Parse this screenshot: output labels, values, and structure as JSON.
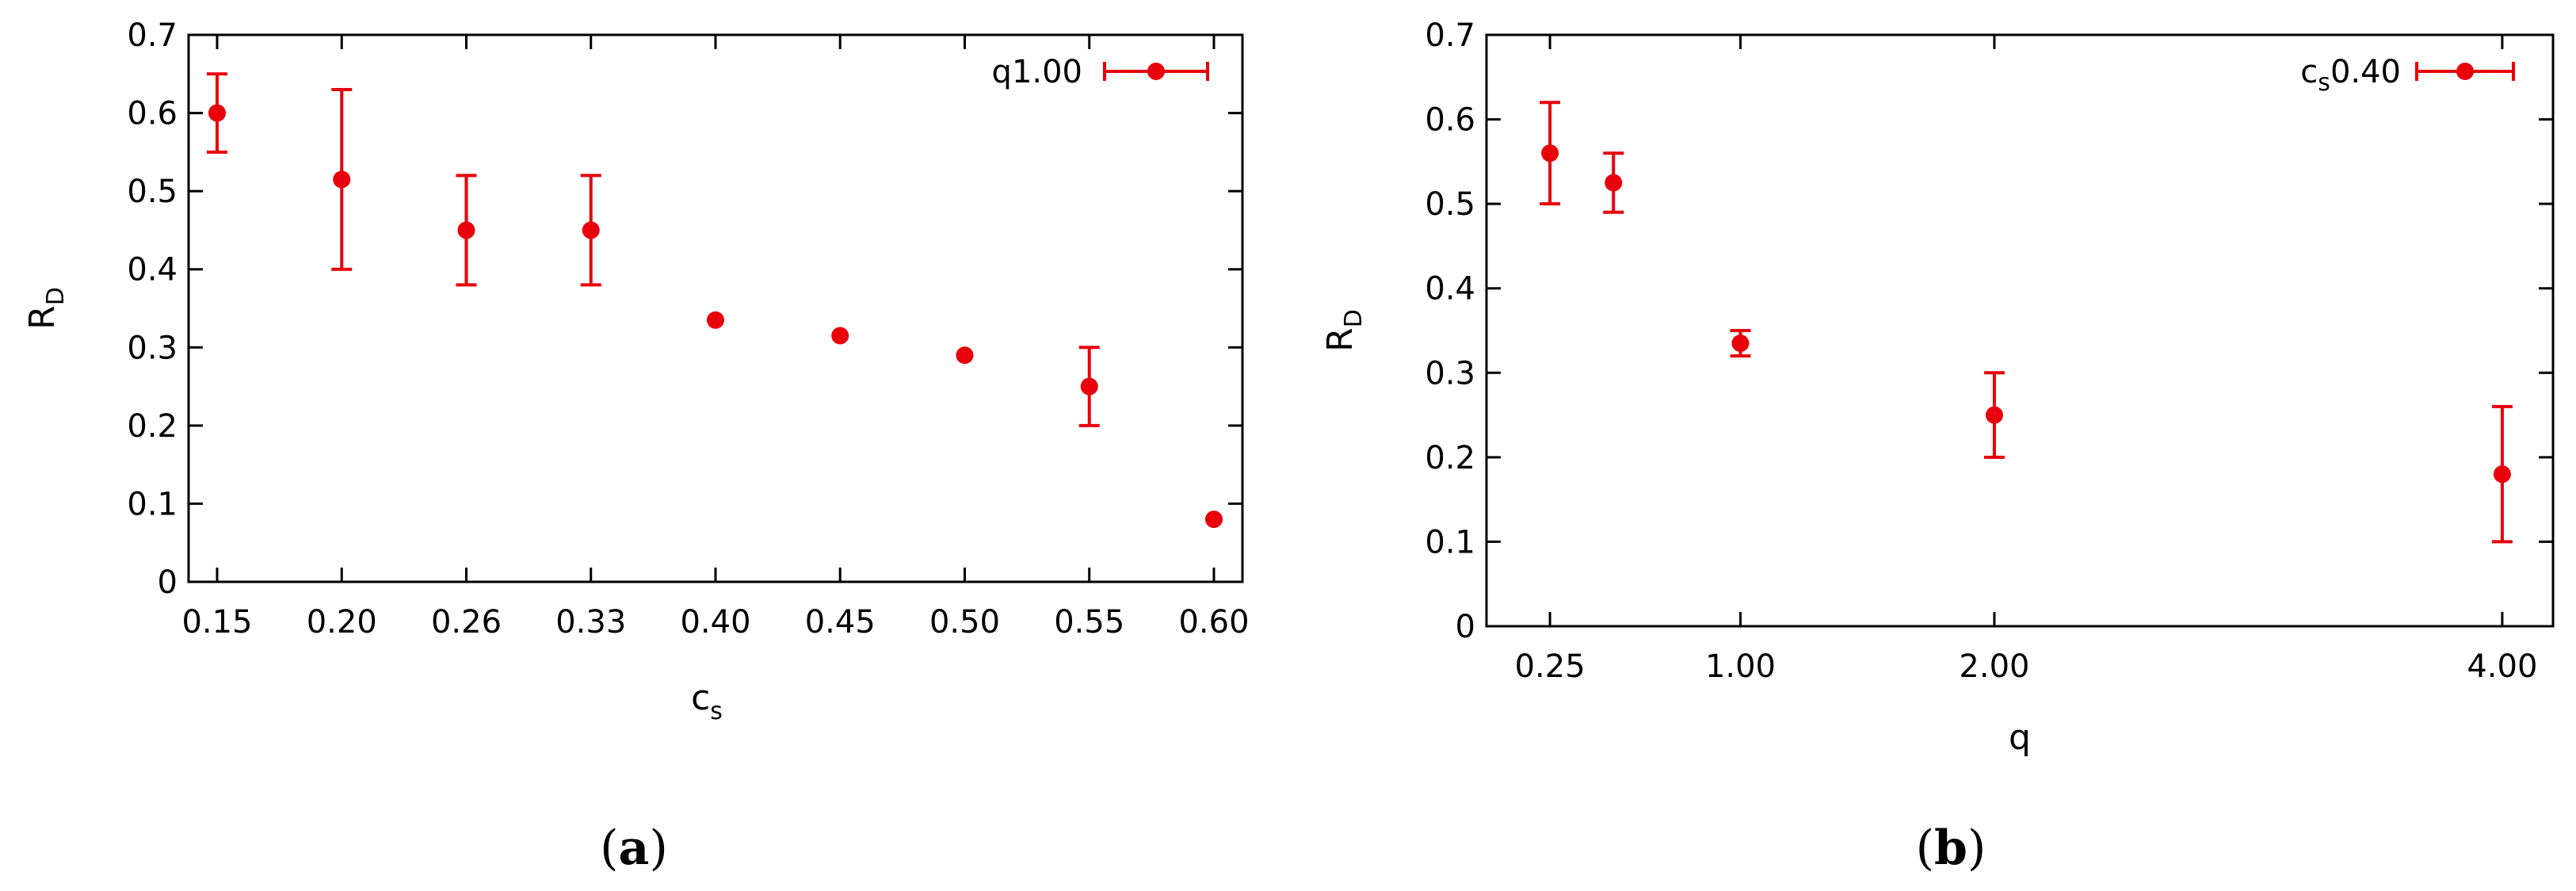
{
  "chart_data": [
    {
      "type": "scatter",
      "caption": "a",
      "xlabel": "c",
      "xlabel_sub": "s",
      "ylabel": "R",
      "ylabel_sub": "D",
      "ylim": [
        0,
        0.7
      ],
      "y_ticks": [
        "0",
        "0.1",
        "0.2",
        "0.3",
        "0.4",
        "0.5",
        "0.6",
        "0.7"
      ],
      "x_ticks": [
        "0.15",
        "0.20",
        "0.26",
        "0.33",
        "0.40",
        "0.45",
        "0.50",
        "0.55",
        "0.60"
      ],
      "legend": "top-right",
      "color": "#e8000b",
      "series": [
        {
          "name": "q1.00",
          "x": [
            0.15,
            0.2,
            0.26,
            0.33,
            0.4,
            0.45,
            0.5,
            0.55,
            0.6
          ],
          "y": [
            0.6,
            0.515,
            0.45,
            0.45,
            0.335,
            0.315,
            0.29,
            0.25,
            0.08
          ],
          "err_low": [
            0.55,
            0.4,
            0.38,
            0.38,
            null,
            null,
            null,
            0.2,
            null
          ],
          "err_high": [
            0.65,
            0.63,
            0.52,
            0.52,
            null,
            null,
            null,
            0.3,
            null
          ]
        }
      ]
    },
    {
      "type": "scatter",
      "caption": "b",
      "xlabel": "q",
      "xlabel_sub": "",
      "ylabel": "R",
      "ylabel_sub": "D",
      "ylim": [
        0,
        0.7
      ],
      "xlim": [
        0.0,
        4.2
      ],
      "y_ticks": [
        "0",
        "0.1",
        "0.2",
        "0.3",
        "0.4",
        "0.5",
        "0.6",
        "0.7"
      ],
      "x_ticks": [
        "0.25",
        "1.00",
        "2.00",
        "4.00"
      ],
      "x_tick_values": [
        0.25,
        1.0,
        2.0,
        4.0
      ],
      "legend": "top-right",
      "color": "#e8000b",
      "series": [
        {
          "name_main": "c",
          "name_sub": "s",
          "name_rest": "0.40",
          "x": [
            0.25,
            0.5,
            1.0,
            2.0,
            4.0
          ],
          "y": [
            0.56,
            0.525,
            0.335,
            0.25,
            0.18
          ],
          "err_low": [
            0.5,
            0.49,
            0.32,
            0.2,
            0.1
          ],
          "err_high": [
            0.62,
            0.56,
            0.35,
            0.3,
            0.26
          ]
        }
      ]
    }
  ]
}
